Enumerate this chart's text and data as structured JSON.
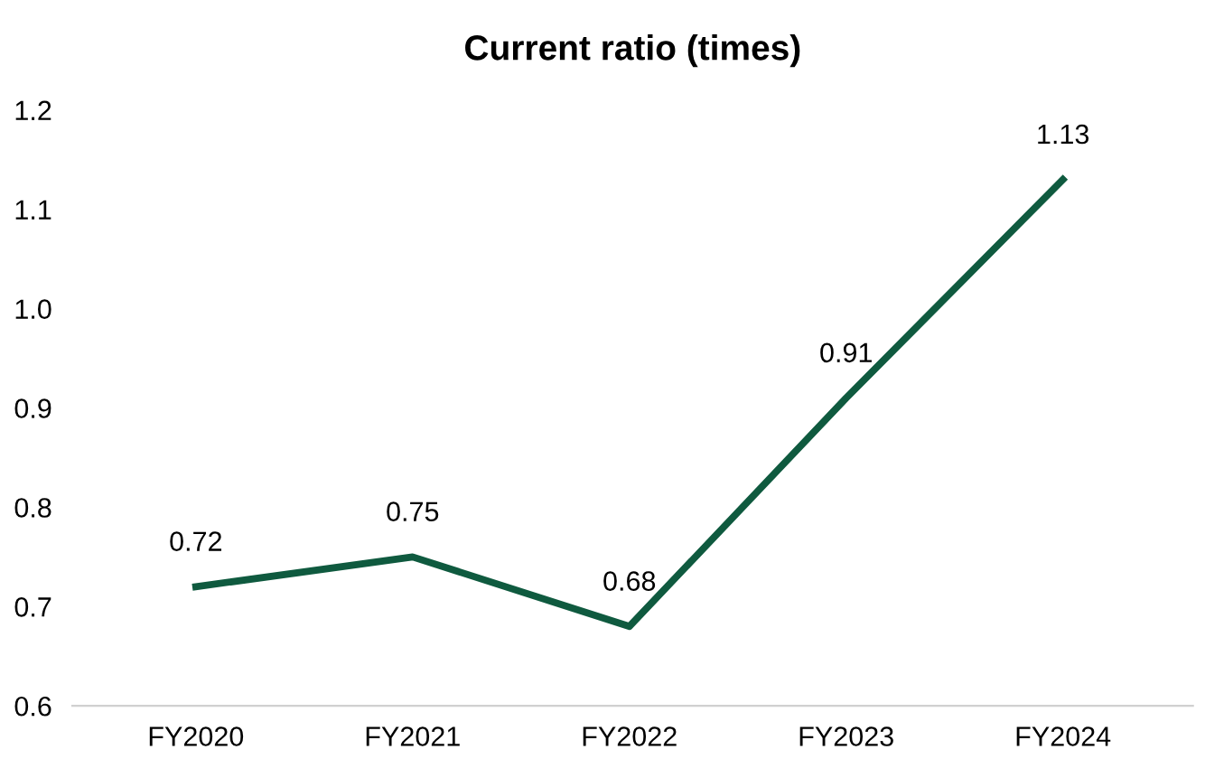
{
  "chart_data": {
    "type": "line",
    "title": "Current ratio (times)",
    "categories": [
      "FY2020",
      "FY2021",
      "FY2022",
      "FY2023",
      "FY2024"
    ],
    "series": [
      {
        "color": "#0f5a3f",
        "values": [
          0.72,
          0.75,
          0.68,
          0.91,
          1.13
        ]
      }
    ],
    "ylim": [
      0.6,
      1.2
    ],
    "yticks": [
      0.6,
      0.7,
      0.8,
      0.9,
      {
        "value": 1.0,
        "label": "1.0"
      },
      1.1,
      1.2
    ],
    "data_labels": true,
    "grid": false,
    "legend": false,
    "marker": "none",
    "line_style": "solid"
  }
}
